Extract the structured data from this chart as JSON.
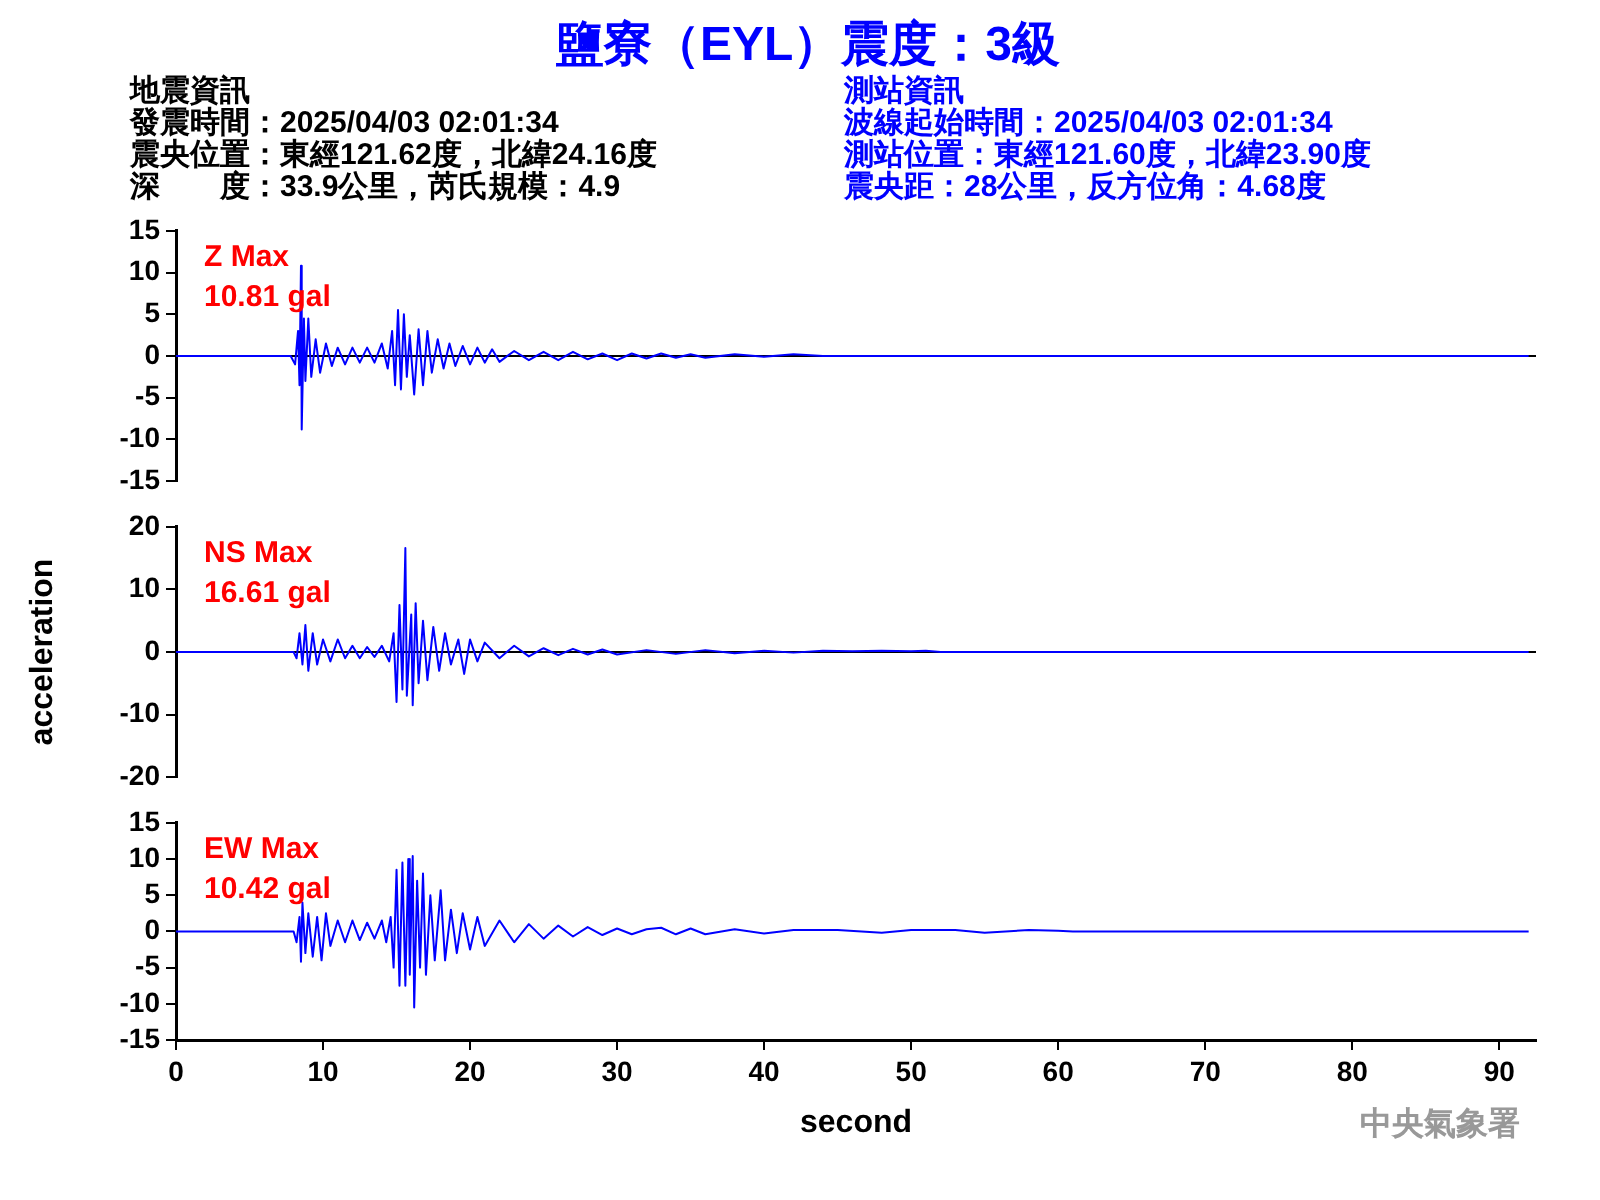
{
  "chart_data": [
    {
      "type": "other",
      "title": "鹽寮（EYL）震度：3級",
      "annotations": [
        "地震資訊",
        "發震時間：2025/04/03 02:01:34",
        "震央位置：東經121.62度，北緯24.16度",
        "深　　度：33.9公里，芮氏規模：4.9",
        "測站資訊",
        "波線起始時間：2025/04/03 02:01:34",
        "測站位置：東經121.60度，北緯23.90度",
        "震央距：28公里，反方位角：4.68度"
      ]
    },
    {
      "type": "line",
      "tick_labels": "y",
      "legend": false,
      "grid": false,
      "ref_lines": [
        {
          "axis": "y",
          "value": 0,
          "color": "#000000"
        }
      ],
      "xlim": [
        0,
        92.5
      ],
      "ylim": [
        -15,
        15
      ],
      "yticks": [
        -15,
        -10,
        -5,
        0,
        5,
        10,
        15
      ],
      "annotations": [
        "Z Max",
        "10.81 gal"
      ],
      "series": [
        {
          "color": "#0000ff",
          "x": [
            0,
            7.8,
            8.1,
            8.3,
            8.4,
            8.5,
            8.55,
            8.7,
            8.8,
            9,
            9.2,
            9.5,
            9.8,
            10.2,
            10.6,
            11,
            11.5,
            12,
            12.5,
            13,
            13.5,
            14,
            14.4,
            14.7,
            14.9,
            15.1,
            15.3,
            15.5,
            15.7,
            15.9,
            16.2,
            16.5,
            16.8,
            17.1,
            17.4,
            17.8,
            18.2,
            18.6,
            19,
            19.5,
            20,
            20.5,
            21,
            21.5,
            22,
            23,
            24,
            25,
            26,
            27,
            28,
            29,
            30,
            31,
            32,
            33,
            34,
            35,
            36,
            38,
            40,
            42,
            44,
            92
          ],
          "values": [
            0,
            0,
            -1,
            3,
            -3.5,
            10.8,
            -8.8,
            4.5,
            -3,
            4.5,
            -2.5,
            2,
            -2,
            1.5,
            -1.2,
            1,
            -1,
            1,
            -0.8,
            1,
            -0.8,
            1.5,
            -1.5,
            3,
            -3.5,
            5.5,
            -4,
            5,
            -2.5,
            2.5,
            -4.6,
            3.2,
            -3.5,
            3,
            -2,
            2,
            -1.5,
            1.5,
            -1.2,
            1.2,
            -1,
            1,
            -0.8,
            0.8,
            -0.7,
            0.6,
            -0.5,
            0.5,
            -0.5,
            0.5,
            -0.4,
            0.3,
            -0.5,
            0.3,
            -0.3,
            0.3,
            -0.2,
            0.2,
            -0.2,
            0.2,
            -0.1,
            0.2,
            0,
            0
          ]
        }
      ]
    },
    {
      "type": "line",
      "tick_labels": "y",
      "legend": false,
      "grid": false,
      "ylabel": "acceleration",
      "ref_lines": [
        {
          "axis": "y",
          "value": 0,
          "color": "#000000"
        }
      ],
      "xlim": [
        0,
        92.5
      ],
      "ylim": [
        -20,
        20
      ],
      "yticks": [
        -20,
        -10,
        0,
        10,
        20
      ],
      "annotations": [
        "NS Max",
        "16.61 gal"
      ],
      "series": [
        {
          "color": "#0000ff",
          "x": [
            0,
            8,
            8.2,
            8.4,
            8.6,
            8.8,
            9,
            9.3,
            9.6,
            10,
            10.5,
            11,
            11.5,
            12,
            12.5,
            13,
            13.5,
            14,
            14.5,
            14.8,
            15,
            15.2,
            15.4,
            15.6,
            15.7,
            16,
            16.1,
            16.3,
            16.5,
            16.8,
            17.1,
            17.5,
            17.9,
            18.3,
            18.7,
            19.2,
            19.6,
            20,
            20.5,
            21,
            22,
            23,
            24,
            25,
            26,
            27,
            28,
            29,
            30,
            32,
            34,
            36,
            38,
            40,
            42,
            44,
            46,
            48,
            50,
            51,
            52,
            92
          ],
          "values": [
            0,
            0,
            -1,
            3,
            -2,
            4.3,
            -3,
            3,
            -2,
            2,
            -1.5,
            2,
            -1,
            1,
            -1,
            0.8,
            -0.8,
            1,
            -1.5,
            3,
            -8,
            7.5,
            -6,
            16.6,
            -7,
            6,
            -8.5,
            7.8,
            -5,
            5,
            -4.5,
            4,
            -3,
            3,
            -2,
            2,
            -3.5,
            2,
            -1.5,
            1.5,
            -1,
            1,
            -0.7,
            0.6,
            -0.5,
            0.5,
            -0.4,
            0.4,
            -0.4,
            0.3,
            -0.3,
            0.3,
            -0.2,
            0.2,
            -0.1,
            0.2,
            0.1,
            0.2,
            0.1,
            0.2,
            0,
            0
          ]
        }
      ]
    },
    {
      "type": "line",
      "legend": false,
      "grid": false,
      "xlabel": "second",
      "xlim": [
        0,
        92.5
      ],
      "xticks": [
        0,
        10,
        20,
        30,
        40,
        50,
        60,
        70,
        80,
        90
      ],
      "ylim": [
        -15,
        15
      ],
      "yticks": [
        -15,
        -10,
        -5,
        0,
        5,
        10,
        15
      ],
      "annotations": [
        "EW Max",
        "10.42 gal",
        "中央氣象署"
      ],
      "series": [
        {
          "color": "#0000ff",
          "x": [
            0,
            8,
            8.2,
            8.4,
            8.5,
            8.6,
            8.8,
            9,
            9.3,
            9.6,
            9.9,
            10.2,
            10.5,
            11,
            11.5,
            12,
            12.5,
            13,
            13.5,
            14,
            14.3,
            14.6,
            14.8,
            15,
            15.2,
            15.4,
            15.6,
            15.8,
            15.9,
            16.1,
            16.2,
            16.4,
            16.6,
            16.8,
            17,
            17.3,
            17.6,
            18,
            18.3,
            18.7,
            19.1,
            19.5,
            20,
            20.5,
            21,
            22,
            23,
            24,
            25,
            26,
            27,
            28,
            29,
            30,
            31,
            32,
            33,
            34,
            35,
            36,
            38,
            40,
            42,
            45,
            48,
            50,
            53,
            55,
            58,
            60,
            61,
            92
          ],
          "values": [
            0,
            0,
            -1.5,
            2,
            -4.2,
            4,
            -3,
            2.5,
            -3.5,
            2,
            -4,
            2.5,
            -2,
            1.5,
            -1.5,
            1.5,
            -1.2,
            1.2,
            -1,
            1.5,
            -1.5,
            2,
            -5,
            8.5,
            -7.5,
            9.5,
            -7.5,
            10,
            -6,
            10.4,
            -10.5,
            7,
            -5,
            8,
            -6,
            5,
            -4,
            5.7,
            -4,
            3,
            -3,
            2.5,
            -2.5,
            2,
            -2,
            1.5,
            -1.5,
            1,
            -1,
            0.8,
            -0.7,
            0.6,
            -0.5,
            0.4,
            -0.4,
            0.3,
            0.5,
            -0.4,
            0.4,
            -0.4,
            0.3,
            -0.3,
            0.2,
            0.2,
            -0.2,
            0.2,
            0.2,
            -0.2,
            0.2,
            0.1,
            0,
            0
          ]
        }
      ]
    }
  ]
}
